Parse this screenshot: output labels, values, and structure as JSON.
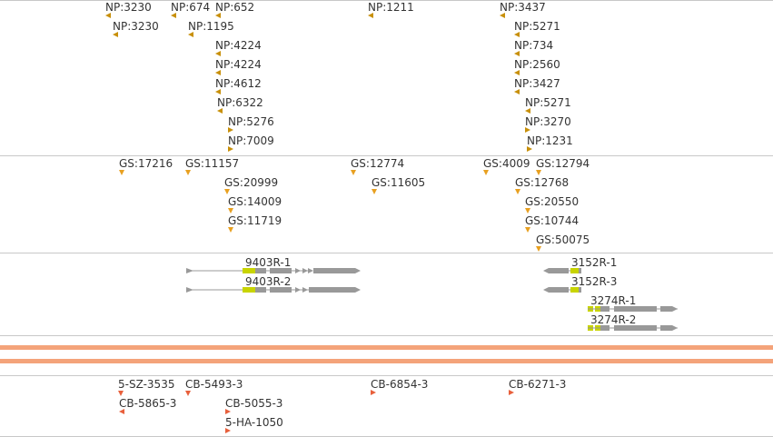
{
  "colors": {
    "np_marker": "#c8900a",
    "gs_marker": "#e8a020",
    "cb_marker": "#e8603c",
    "gene_body": "#999999",
    "gene_highlight": "#c8d400",
    "selection_band": "#f4a37a",
    "track_rule": "#c8c8c8",
    "label_text": "#333333"
  },
  "tracks": {
    "np": [
      {
        "label": "NP:3230",
        "marker": "left-icon"
      },
      {
        "label": "NP:674",
        "marker": "left-icon"
      },
      {
        "label": "NP:652",
        "marker": "left-icon"
      },
      {
        "label": "NP:1211",
        "marker": "left-icon"
      },
      {
        "label": "NP:3437",
        "marker": "left-icon"
      },
      {
        "label": "NP:3230",
        "marker": "left-icon"
      },
      {
        "label": "NP:1195",
        "marker": "left-icon"
      },
      {
        "label": "NP:5271",
        "marker": "left-icon"
      },
      {
        "label": "NP:4224",
        "marker": "left-icon"
      },
      {
        "label": "NP:734",
        "marker": "left-icon"
      },
      {
        "label": "NP:4224",
        "marker": "left-icon"
      },
      {
        "label": "NP:2560",
        "marker": "left-icon"
      },
      {
        "label": "NP:4612",
        "marker": "left-icon"
      },
      {
        "label": "NP:3427",
        "marker": "left-icon"
      },
      {
        "label": "NP:6322",
        "marker": "left-icon"
      },
      {
        "label": "NP:5271",
        "marker": "left-icon"
      },
      {
        "label": "NP:5276",
        "marker": "right-icon"
      },
      {
        "label": "NP:3270",
        "marker": "right-icon"
      },
      {
        "label": "NP:7009",
        "marker": "right-icon"
      },
      {
        "label": "NP:1231",
        "marker": "right-icon"
      }
    ],
    "gs": [
      {
        "label": "GS:17216",
        "marker": "down-icon"
      },
      {
        "label": "GS:11157",
        "marker": "down-icon"
      },
      {
        "label": "GS:12774",
        "marker": "down-icon"
      },
      {
        "label": "GS:4009",
        "marker": "down-icon"
      },
      {
        "label": "GS:12794",
        "marker": "down-icon"
      },
      {
        "label": "GS:20999",
        "marker": "down-icon"
      },
      {
        "label": "GS:11605",
        "marker": "down-icon"
      },
      {
        "label": "GS:12768",
        "marker": "down-icon"
      },
      {
        "label": "GS:14009",
        "marker": "down-icon"
      },
      {
        "label": "GS:20550",
        "marker": "down-icon"
      },
      {
        "label": "GS:11719",
        "marker": "down-icon"
      },
      {
        "label": "GS:10744",
        "marker": "down-icon"
      },
      {
        "label": "GS:50075",
        "marker": "down-icon"
      }
    ],
    "genes": [
      {
        "label": "9403R-1",
        "strand": "+"
      },
      {
        "label": "9403R-2",
        "strand": "+"
      },
      {
        "label": "3152R-1",
        "strand": "-"
      },
      {
        "label": "3152R-3",
        "strand": "-"
      },
      {
        "label": "3274R-1",
        "strand": "+"
      },
      {
        "label": "3274R-2",
        "strand": "+"
      }
    ],
    "cb": [
      {
        "label": "5-SZ-3535",
        "marker": "down-icon"
      },
      {
        "label": "CB-5493-3",
        "marker": "down-icon"
      },
      {
        "label": "CB-6854-3",
        "marker": "right-icon"
      },
      {
        "label": "CB-6271-3",
        "marker": "right-icon"
      },
      {
        "label": "CB-5865-3",
        "marker": "left-icon"
      },
      {
        "label": "CB-5055-3",
        "marker": "right-icon"
      },
      {
        "label": "5-HA-1050",
        "marker": "right-icon"
      }
    ]
  }
}
